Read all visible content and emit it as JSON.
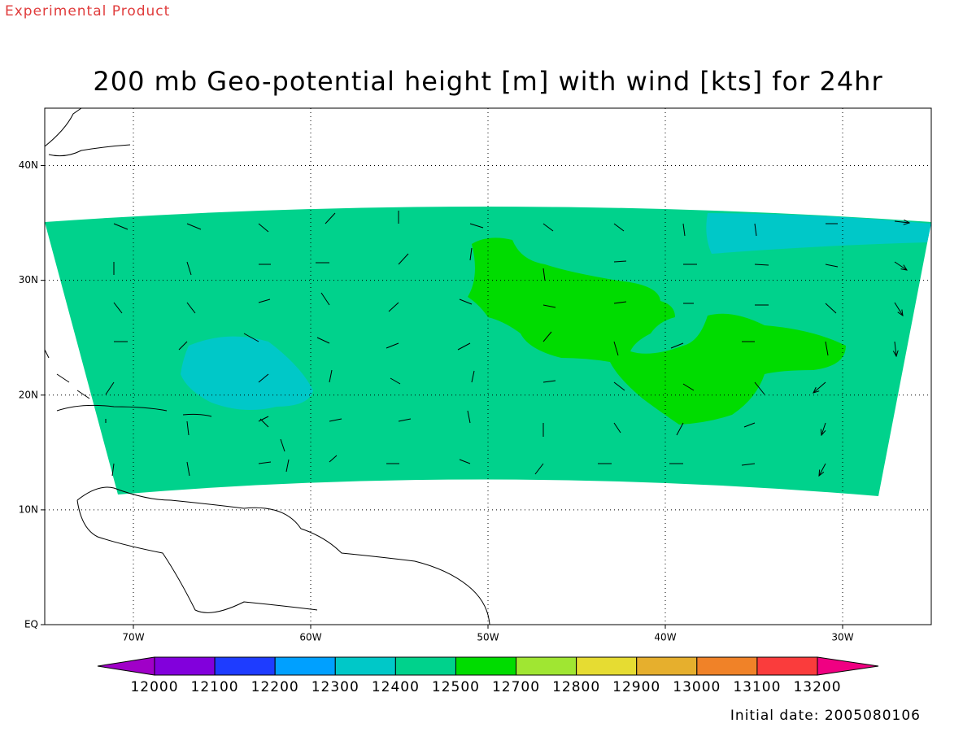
{
  "header": {
    "label": "Experimental Product"
  },
  "map": {
    "title": "200 mb Geo-potential height [m] with wind [kts] for 24hr",
    "xlim": [
      -75,
      -25
    ],
    "ylim": [
      0,
      45
    ],
    "lon_ticks": [
      {
        "value": -70,
        "label": "70W"
      },
      {
        "value": -60,
        "label": "60W"
      },
      {
        "value": -50,
        "label": "50W"
      },
      {
        "value": -40,
        "label": "40W"
      },
      {
        "value": -30,
        "label": "30W"
      }
    ],
    "lat_ticks": [
      {
        "value": 0,
        "label": "EQ"
      },
      {
        "value": 10,
        "label": "10N"
      },
      {
        "value": 20,
        "label": "20N"
      },
      {
        "value": 30,
        "label": "30N"
      },
      {
        "value": 40,
        "label": "40N"
      }
    ],
    "grid": true
  },
  "colorbar": {
    "labels": [
      12000,
      12100,
      12200,
      12300,
      12400,
      12500,
      12700,
      12800,
      12900,
      13000,
      13100,
      13200
    ],
    "colors": [
      "#a000c8",
      "#8200dc",
      "#1e3cff",
      "#00a0ff",
      "#00c8c8",
      "#00d28c",
      "#00dc00",
      "#a0e632",
      "#e6dc32",
      "#e6af2d",
      "#f08228",
      "#fa3c3c",
      "#f00082"
    ]
  },
  "footer": {
    "initial_date": "Initial date: 2005080106"
  }
}
